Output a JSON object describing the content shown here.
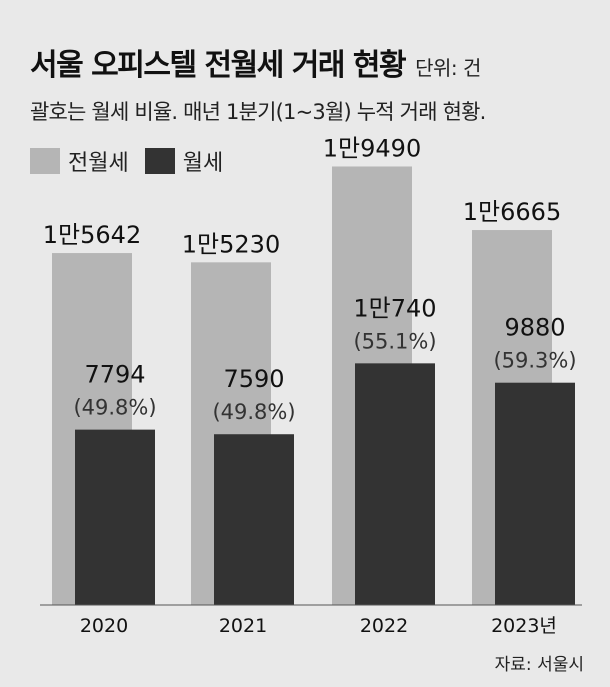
{
  "header": {
    "title": "서울 오피스텔 전월세 거래 현황",
    "unit": "단위: 건",
    "subtitle": "괄호는 월세 비율. 매년 1분기(1~3월) 누적 거래 현황."
  },
  "legend": {
    "items": [
      {
        "label": "전월세",
        "color": "#b5b5b5"
      },
      {
        "label": "월세",
        "color": "#333333"
      }
    ]
  },
  "footer": {
    "source": "자료: 서울시"
  },
  "chart_data": {
    "type": "bar",
    "title": "서울 오피스텔 전월세 거래 현황",
    "categories": [
      "2020",
      "2021",
      "2022",
      "2023년"
    ],
    "series": [
      {
        "name": "전월세",
        "values": [
          15642,
          15230,
          19490,
          16665
        ],
        "labels": [
          "1만5642",
          "1만5230",
          "1만9490",
          "1만6665"
        ],
        "color": "#b5b5b5"
      },
      {
        "name": "월세",
        "values": [
          7794,
          7590,
          10740,
          9880
        ],
        "labels": [
          "7794",
          "7590",
          "1만740",
          "9880"
        ],
        "ratio_labels": [
          "(49.8%)",
          "(49.8%)",
          "(55.1%)",
          "(59.3%)"
        ],
        "color": "#333333"
      }
    ],
    "ylim": [
      0,
      23000
    ],
    "grid": false,
    "legend_position": "top-left"
  }
}
